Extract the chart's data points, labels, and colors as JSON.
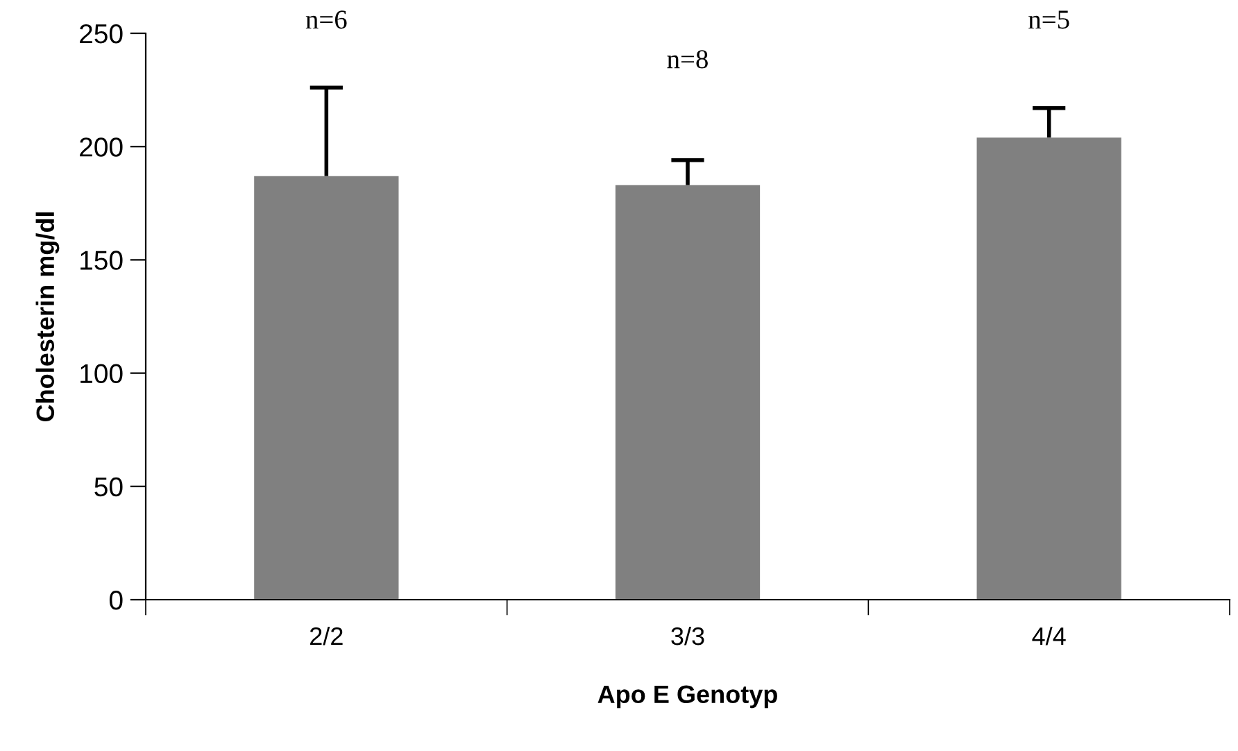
{
  "chart_data": {
    "type": "bar",
    "xlabel": "Apo E Genotyp",
    "ylabel": "Cholesterin mg/dl",
    "categories": [
      "2/2",
      "3/3",
      "4/4"
    ],
    "values": [
      187,
      183,
      204
    ],
    "errors": [
      [
        187,
        226
      ],
      [
        183,
        194
      ],
      [
        204,
        217
      ]
    ],
    "color": "#808080",
    "ylim": [
      0,
      250
    ],
    "yticks": [
      0,
      50,
      100,
      150,
      200,
      250
    ],
    "grid": false,
    "legend": false,
    "annotations": [
      "n=6",
      "n=8",
      "n=5"
    ]
  }
}
